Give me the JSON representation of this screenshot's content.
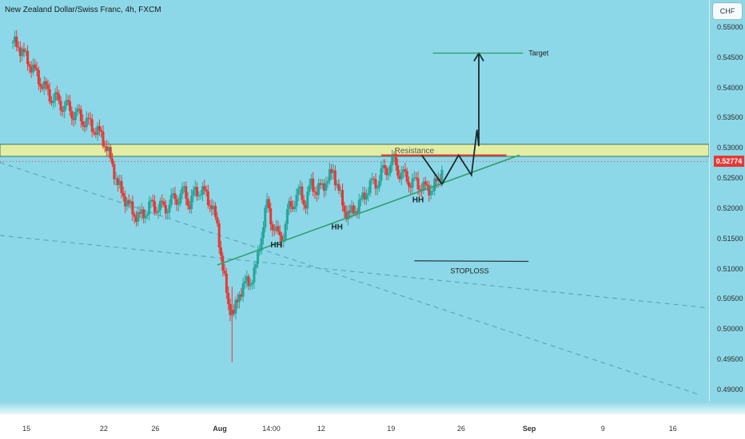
{
  "header": {
    "title": "New Zealand Dollar/Swiss Franc, 4h, FXCM",
    "currency": "CHF"
  },
  "colors": {
    "background": "#8dd8e8",
    "up": "#26a69a",
    "down": "#e53935",
    "resistance": "#e6f0a0",
    "trend": "#2f9e6e",
    "dashed": "#5fa8b5",
    "drawing": "#1c2b2b"
  },
  "chart_data": {
    "type": "candlestick",
    "title": "New Zealand Dollar/Swiss Franc, 4h, FXCM",
    "ylim": [
      0.488,
      0.5545
    ],
    "y_ticks": [
      "0.55000",
      "0.54500",
      "0.54000",
      "0.53500",
      "0.53000",
      "0.52500",
      "0.52000",
      "0.51500",
      "0.51000",
      "0.50500",
      "0.50000",
      "0.49500",
      "0.49000"
    ],
    "x_ticks": [
      {
        "label": "15",
        "x": 0
      },
      {
        "label": "22",
        "x": 42
      },
      {
        "label": "26",
        "x": 70
      },
      {
        "label": "Aug",
        "x": 105,
        "bold": true
      },
      {
        "label": "14:00",
        "x": 133
      },
      {
        "label": "12",
        "x": 160
      },
      {
        "label": "19",
        "x": 198
      },
      {
        "label": "26",
        "x": 236
      },
      {
        "label": "Sep",
        "x": 273,
        "bold": true
      },
      {
        "label": "9",
        "x": 313
      },
      {
        "label": "16",
        "x": 351
      }
    ],
    "x_range": [
      -7,
      378
    ],
    "last_price": "0.52774",
    "close_path": [
      [
        0,
        0.5475
      ],
      [
        3,
        0.5468
      ],
      [
        6,
        0.5455
      ],
      [
        9,
        0.544
      ],
      [
        12,
        0.5425
      ],
      [
        15,
        0.541
      ],
      [
        18,
        0.5395
      ],
      [
        21,
        0.5385
      ],
      [
        24,
        0.5378
      ],
      [
        27,
        0.5372
      ],
      [
        30,
        0.5365
      ],
      [
        33,
        0.5358
      ],
      [
        36,
        0.5352
      ],
      [
        39,
        0.5345
      ],
      [
        42,
        0.5338
      ],
      [
        45,
        0.533
      ],
      [
        48,
        0.532
      ],
      [
        51,
        0.53
      ],
      [
        54,
        0.527
      ],
      [
        57,
        0.524
      ],
      [
        60,
        0.522
      ],
      [
        63,
        0.5205
      ],
      [
        66,
        0.519
      ],
      [
        69,
        0.5185
      ],
      [
        72,
        0.5195
      ],
      [
        75,
        0.5205
      ],
      [
        78,
        0.5203
      ],
      [
        81,
        0.52
      ],
      [
        84,
        0.5205
      ],
      [
        87,
        0.5213
      ],
      [
        90,
        0.522
      ],
      [
        93,
        0.5225
      ],
      [
        96,
        0.521
      ],
      [
        99,
        0.5225
      ],
      [
        102,
        0.5232
      ],
      [
        105,
        0.522
      ],
      [
        108,
        0.5205
      ],
      [
        111,
        0.517
      ],
      [
        114,
        0.51
      ],
      [
        117,
        0.504
      ],
      [
        120,
        0.5025
      ],
      [
        123,
        0.506
      ],
      [
        126,
        0.5075
      ],
      [
        129,
        0.508
      ],
      [
        132,
        0.51
      ],
      [
        135,
        0.516
      ],
      [
        138,
        0.5205
      ],
      [
        141,
        0.5175
      ],
      [
        144,
        0.515
      ],
      [
        147,
        0.516
      ],
      [
        150,
        0.52
      ],
      [
        153,
        0.5215
      ],
      [
        156,
        0.5225
      ],
      [
        159,
        0.521
      ],
      [
        162,
        0.524
      ],
      [
        165,
        0.523
      ],
      [
        168,
        0.5235
      ],
      [
        171,
        0.525
      ],
      [
        174,
        0.526
      ],
      [
        177,
        0.523
      ],
      [
        180,
        0.5195
      ],
      [
        183,
        0.519
      ],
      [
        186,
        0.52
      ],
      [
        189,
        0.521
      ],
      [
        192,
        0.523
      ],
      [
        195,
        0.524
      ],
      [
        198,
        0.5245
      ],
      [
        201,
        0.526
      ],
      [
        204,
        0.527
      ],
      [
        207,
        0.5278
      ],
      [
        210,
        0.526
      ],
      [
        213,
        0.525
      ],
      [
        216,
        0.5245
      ],
      [
        219,
        0.524
      ],
      [
        222,
        0.5238
      ],
      [
        225,
        0.523
      ],
      [
        228,
        0.5235
      ],
      [
        231,
        0.5245
      ],
      [
        234,
        0.5275
      ]
    ],
    "resistance": {
      "label": "Resistance",
      "y_low": 0.5286,
      "y_high": 0.5306,
      "x_end": 378
    },
    "target": {
      "label": "Target",
      "y": 0.5457
    },
    "stoploss": {
      "label": "STOPLOSS",
      "y": 0.5112
    },
    "markers": [
      {
        "label": "HH",
        "x": 143,
        "y": 0.5135
      },
      {
        "label": "HH",
        "x": 176,
        "y": 0.5165
      },
      {
        "label": "HH",
        "x": 220,
        "y": 0.521
      }
    ]
  }
}
